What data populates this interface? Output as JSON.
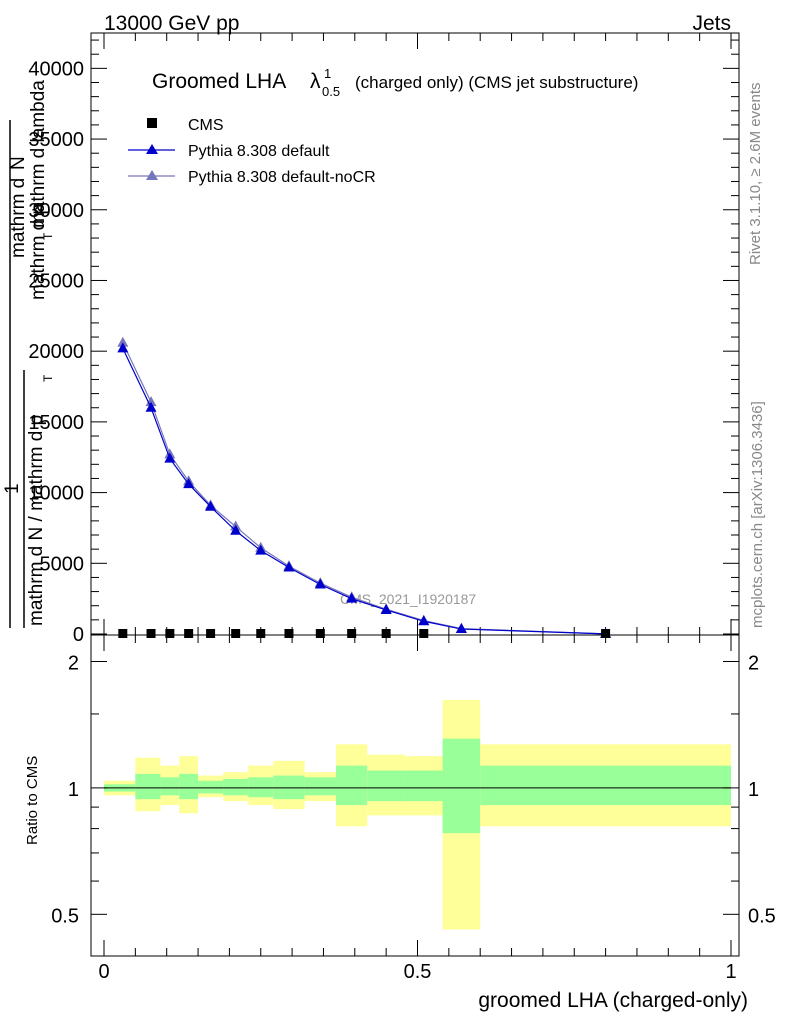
{
  "header": {
    "energy": "13000 GeV pp",
    "process": "Jets"
  },
  "side_labels": {
    "rivet": "Rivet 3.1.10, ≥ 2.6M events",
    "mcplots": "mcplots.cern.ch [arXiv:1306.3436]"
  },
  "chart_data": [
    {
      "type": "line",
      "title_main": "Groomed LHA",
      "title_lambda": "λ",
      "title_sup": "1",
      "title_sub": "0.5",
      "title_rest": "(charged only) (CMS jet substructure)",
      "watermark": "CMS_2021_I1920187",
      "ylabel_numerator_1": "mathrm d",
      "ylabel_numerator_2": "N",
      "ylabel_numerator_3": "mathrm d p",
      "ylabel_numerator_4": "T",
      "ylabel_numerator_5": "mathrm d lambda",
      "ylabel_prefactor": "1",
      "ylabel_denominator_1": "mathrm d N / mathrm d p",
      "ylabel_denominator_2": "T",
      "xlim": [
        0,
        1
      ],
      "ylim": [
        0,
        42500
      ],
      "yticks": [
        0,
        5000,
        10000,
        15000,
        20000,
        25000,
        30000,
        35000,
        40000
      ],
      "ytick_labels": [
        "0",
        "5000",
        "10000",
        "15000",
        "20000",
        "25000",
        "30000",
        "35000",
        "40000"
      ],
      "legend_position": "top-left",
      "series": [
        {
          "name": "CMS",
          "color": "#000000",
          "marker": "square",
          "x": [
            0.03,
            0.075,
            0.105,
            0.135,
            0.17,
            0.21,
            0.25,
            0.295,
            0.345,
            0.395,
            0.45,
            0.51,
            0.8
          ],
          "values": [
            0,
            0,
            0,
            0,
            0,
            0,
            0,
            0,
            0,
            0,
            0,
            0,
            0
          ]
        },
        {
          "name": "Pythia 8.308 default",
          "color": "#0000cc",
          "marker": "triangle",
          "x": [
            0.03,
            0.075,
            0.105,
            0.135,
            0.17,
            0.21,
            0.25,
            0.295,
            0.345,
            0.395,
            0.45,
            0.51,
            0.57,
            0.8
          ],
          "values": [
            20200,
            16000,
            12400,
            10600,
            9000,
            7300,
            5900,
            4700,
            3500,
            2500,
            1700,
            900,
            350,
            10
          ]
        },
        {
          "name": "Pythia 8.308 default-noCR",
          "color": "#7777bb",
          "marker": "triangle",
          "x": [
            0.03,
            0.075,
            0.105,
            0.135,
            0.17,
            0.21,
            0.25,
            0.295,
            0.345,
            0.395,
            0.45,
            0.51,
            0.57,
            0.8
          ],
          "values": [
            20600,
            16400,
            12700,
            10800,
            9100,
            7600,
            6100,
            4800,
            3600,
            2600,
            1750,
            950,
            380,
            10
          ]
        }
      ]
    },
    {
      "type": "area",
      "ylabel": "Ratio to CMS",
      "xlabel": "groomed LHA (charged-only)",
      "xlim": [
        0,
        1
      ],
      "ylim": [
        0.4,
        2.3
      ],
      "log_y": true,
      "yticks": [
        0.5,
        1,
        2
      ],
      "ytick_labels": [
        "0.5",
        "1",
        "2"
      ],
      "xticks": [
        0,
        0.5,
        1
      ],
      "xtick_labels": [
        "0",
        "0.5",
        "1"
      ],
      "reference_line": 1,
      "bins": [
        {
          "x0": 0.0,
          "x1": 0.05,
          "green_lo": 0.98,
          "green_hi": 1.02,
          "yellow_lo": 0.96,
          "yellow_hi": 1.04
        },
        {
          "x0": 0.05,
          "x1": 0.09,
          "green_lo": 0.94,
          "green_hi": 1.08,
          "yellow_lo": 0.88,
          "yellow_hi": 1.18
        },
        {
          "x0": 0.09,
          "x1": 0.12,
          "green_lo": 0.96,
          "green_hi": 1.06,
          "yellow_lo": 0.91,
          "yellow_hi": 1.13
        },
        {
          "x0": 0.12,
          "x1": 0.15,
          "green_lo": 0.94,
          "green_hi": 1.08,
          "yellow_lo": 0.87,
          "yellow_hi": 1.19
        },
        {
          "x0": 0.15,
          "x1": 0.19,
          "green_lo": 0.97,
          "green_hi": 1.04,
          "yellow_lo": 0.95,
          "yellow_hi": 1.07
        },
        {
          "x0": 0.19,
          "x1": 0.23,
          "green_lo": 0.96,
          "green_hi": 1.05,
          "yellow_lo": 0.93,
          "yellow_hi": 1.09
        },
        {
          "x0": 0.23,
          "x1": 0.27,
          "green_lo": 0.95,
          "green_hi": 1.06,
          "yellow_lo": 0.91,
          "yellow_hi": 1.13
        },
        {
          "x0": 0.27,
          "x1": 0.32,
          "green_lo": 0.94,
          "green_hi": 1.07,
          "yellow_lo": 0.89,
          "yellow_hi": 1.16
        },
        {
          "x0": 0.32,
          "x1": 0.37,
          "green_lo": 0.96,
          "green_hi": 1.06,
          "yellow_lo": 0.93,
          "yellow_hi": 1.09
        },
        {
          "x0": 0.37,
          "x1": 0.42,
          "green_lo": 0.91,
          "green_hi": 1.13,
          "yellow_lo": 0.81,
          "yellow_hi": 1.27
        },
        {
          "x0": 0.42,
          "x1": 0.48,
          "green_lo": 0.93,
          "green_hi": 1.1,
          "yellow_lo": 0.86,
          "yellow_hi": 1.2
        },
        {
          "x0": 0.48,
          "x1": 0.54,
          "green_lo": 0.93,
          "green_hi": 1.1,
          "yellow_lo": 0.86,
          "yellow_hi": 1.19
        },
        {
          "x0": 0.54,
          "x1": 0.6,
          "green_lo": 0.78,
          "green_hi": 1.31,
          "yellow_lo": 0.46,
          "yellow_hi": 1.62
        },
        {
          "x0": 0.6,
          "x1": 1.0,
          "green_lo": 0.91,
          "green_hi": 1.13,
          "yellow_lo": 0.81,
          "yellow_hi": 1.27
        }
      ],
      "colors": {
        "green": "#99ff99",
        "yellow": "#ffff99",
        "line": "#000000"
      }
    }
  ]
}
